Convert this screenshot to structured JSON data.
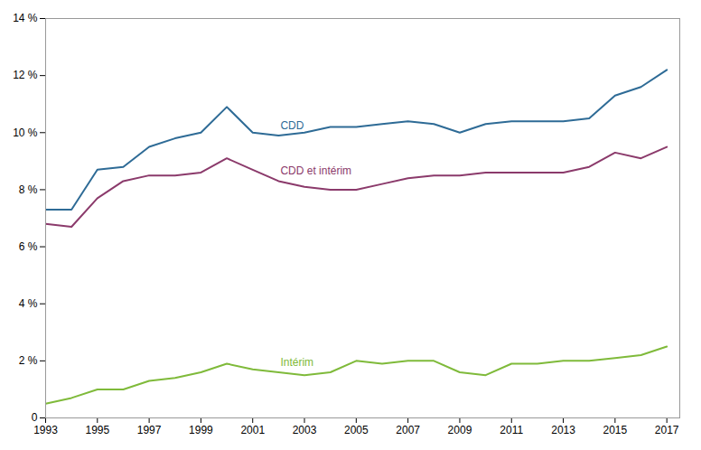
{
  "chart_data": {
    "type": "line",
    "x": [
      1993,
      1994,
      1995,
      1996,
      1997,
      1998,
      1999,
      2000,
      2001,
      2002,
      2003,
      2004,
      2005,
      2006,
      2007,
      2008,
      2009,
      2010,
      2011,
      2012,
      2013,
      2014,
      2015,
      2016,
      2017
    ],
    "series": [
      {
        "name": "CDD",
        "color": "#2e6b96",
        "values": [
          7.3,
          7.3,
          8.7,
          8.8,
          9.5,
          9.8,
          10.0,
          10.9,
          10.0,
          9.9,
          10.0,
          10.2,
          10.2,
          10.3,
          10.4,
          10.3,
          10.0,
          10.3,
          10.4,
          10.4,
          10.4,
          10.5,
          11.3,
          11.6,
          12.2
        ]
      },
      {
        "name": "CDD et intérim",
        "color": "#8b3a6b",
        "values": [
          6.8,
          6.7,
          7.7,
          8.3,
          8.5,
          8.5,
          8.6,
          9.1,
          8.7,
          8.3,
          8.1,
          8.0,
          8.0,
          8.2,
          8.4,
          8.5,
          8.5,
          8.6,
          8.6,
          8.6,
          8.6,
          8.8,
          9.3,
          9.1,
          9.5
        ]
      },
      {
        "name": "Intérim",
        "color": "#7fba3a",
        "values": [
          0.5,
          0.7,
          1.0,
          1.0,
          1.3,
          1.4,
          1.6,
          1.9,
          1.7,
          1.6,
          1.5,
          1.6,
          2.0,
          1.9,
          2.0,
          2.0,
          1.6,
          1.5,
          1.9,
          1.9,
          2.0,
          2.0,
          2.1,
          2.2,
          2.5
        ]
      }
    ],
    "xlim": [
      1993,
      2017.5
    ],
    "xticks": [
      1993,
      1995,
      1997,
      1999,
      2001,
      2003,
      2005,
      2007,
      2009,
      2011,
      2013,
      2015,
      2017
    ],
    "ylim": [
      0,
      14
    ],
    "yticks": [
      0,
      {
        "value": 2,
        "label": "2 %"
      },
      {
        "value": 4,
        "label": "4 %"
      },
      {
        "value": 6,
        "label": "6 %"
      },
      {
        "value": 8,
        "label": "8 %"
      },
      {
        "value": 10,
        "label": "10 %"
      },
      {
        "value": 12,
        "label": "12 %"
      },
      {
        "value": 14,
        "label": "14 %"
      }
    ],
    "grid": false
  }
}
